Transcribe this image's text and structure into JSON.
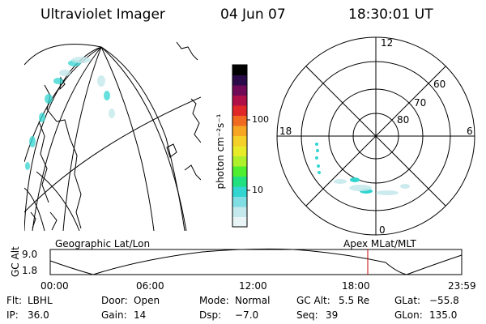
{
  "header": {
    "instrument": "Ultraviolet Imager",
    "date": "04 Jun 07",
    "time": "18:30:01 UT"
  },
  "colorbar": {
    "label": "photon cm⁻²s⁻¹",
    "ticks": [
      "100",
      "10"
    ],
    "colors": [
      "#e8f4f6",
      "#c4e8ec",
      "#7fdde3",
      "#32d5d0",
      "#20e080",
      "#50ee30",
      "#aef02c",
      "#e8ec28",
      "#f4d028",
      "#f6a622",
      "#f06a20",
      "#e02828",
      "#b01048",
      "#700a56",
      "#2a0a48",
      "#000000"
    ]
  },
  "polar": {
    "labels": {
      "noon": "12",
      "midnight": "0",
      "dusk": "18",
      "dawn": "6"
    },
    "lat_labels": [
      "60",
      "70",
      "80"
    ]
  },
  "timeline": {
    "y_axis_label": "GC Alt",
    "y_ticks": [
      "9.0",
      "1.8"
    ],
    "left_title": "Geographic Lat/Lon",
    "right_title": "Apex MLat/MLT",
    "x_ticks": [
      "00:00",
      "06:00",
      "12:00",
      "18:00",
      "23:59"
    ],
    "marker_color": "#c00000"
  },
  "info": {
    "row1": [
      {
        "label": "Flt:",
        "value": "LBHL"
      },
      {
        "label": "Door:",
        "value": "Open"
      },
      {
        "label": "Mode:",
        "value": "Normal"
      },
      {
        "label": "GC Alt:",
        "value": "5.5 Re"
      },
      {
        "label": "GLat:",
        "value": "−55.8"
      }
    ],
    "row2": [
      {
        "label": "IP:",
        "value": "36.0"
      },
      {
        "label": "Gain:",
        "value": "14"
      },
      {
        "label": "Dsp:",
        "value": "−7.0"
      },
      {
        "label": "Seq:",
        "value": "39"
      },
      {
        "label": "GLon:",
        "value": "135.0"
      }
    ]
  }
}
